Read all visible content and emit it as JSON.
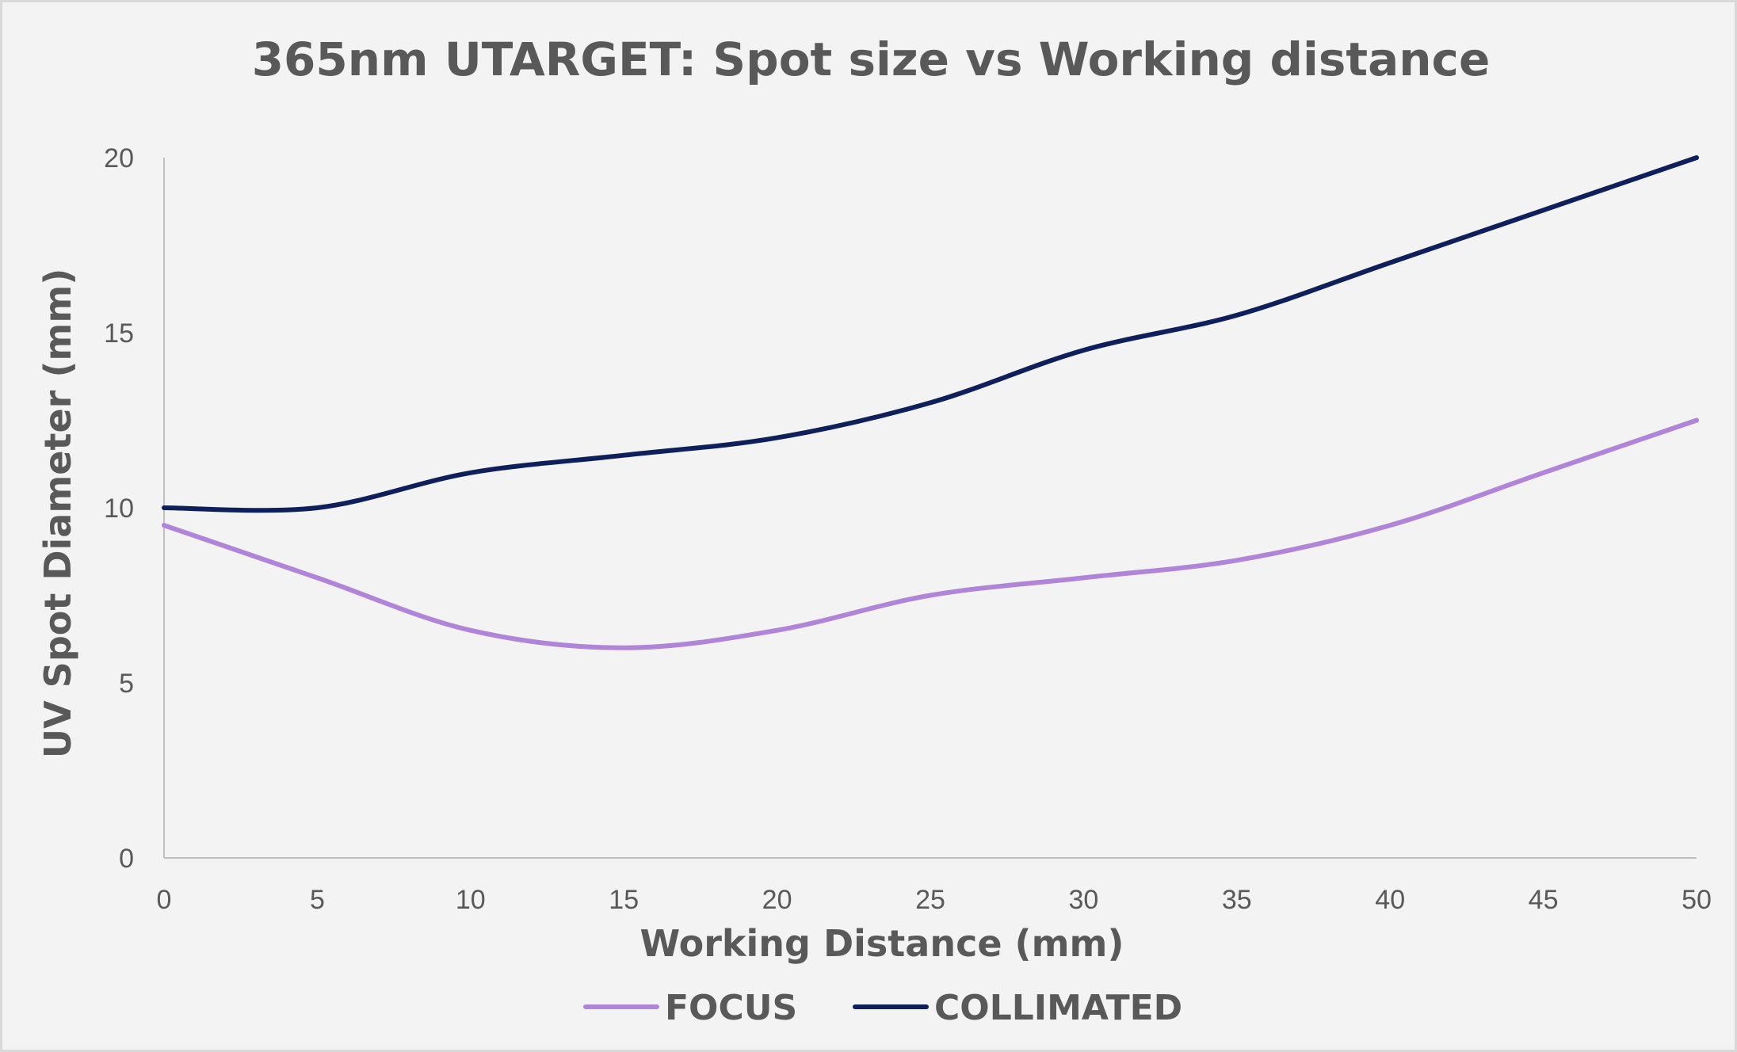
{
  "chart_data": {
    "type": "line",
    "title": "365nm UTARGET: Spot size vs Working distance",
    "xlabel": "Working Distance (mm)",
    "ylabel": "UV Spot Diameter (mm)",
    "x": [
      0,
      5,
      10,
      15,
      20,
      25,
      30,
      35,
      40,
      45,
      50
    ],
    "xlim": [
      0,
      50
    ],
    "ylim": [
      0,
      20
    ],
    "x_ticks": [
      "0",
      "5",
      "10",
      "15",
      "20",
      "25",
      "30",
      "35",
      "40",
      "45",
      "50"
    ],
    "y_ticks": [
      "0",
      "5",
      "10",
      "15",
      "20"
    ],
    "grid": false,
    "legend_position": "bottom",
    "smooth": true,
    "series": [
      {
        "name": "FOCUS",
        "color": "#b084d8",
        "values": [
          9.5,
          8.0,
          6.5,
          6.0,
          6.5,
          7.5,
          8.0,
          8.5,
          9.5,
          11.0,
          12.5
        ]
      },
      {
        "name": "COLLIMATED",
        "color": "#0f1f5c",
        "values": [
          10.0,
          10.0,
          11.0,
          11.5,
          12.0,
          13.0,
          14.5,
          15.5,
          17.0,
          18.5,
          20.0
        ]
      }
    ],
    "axis_color": "#bfbfbf",
    "text_color": "#595959"
  }
}
